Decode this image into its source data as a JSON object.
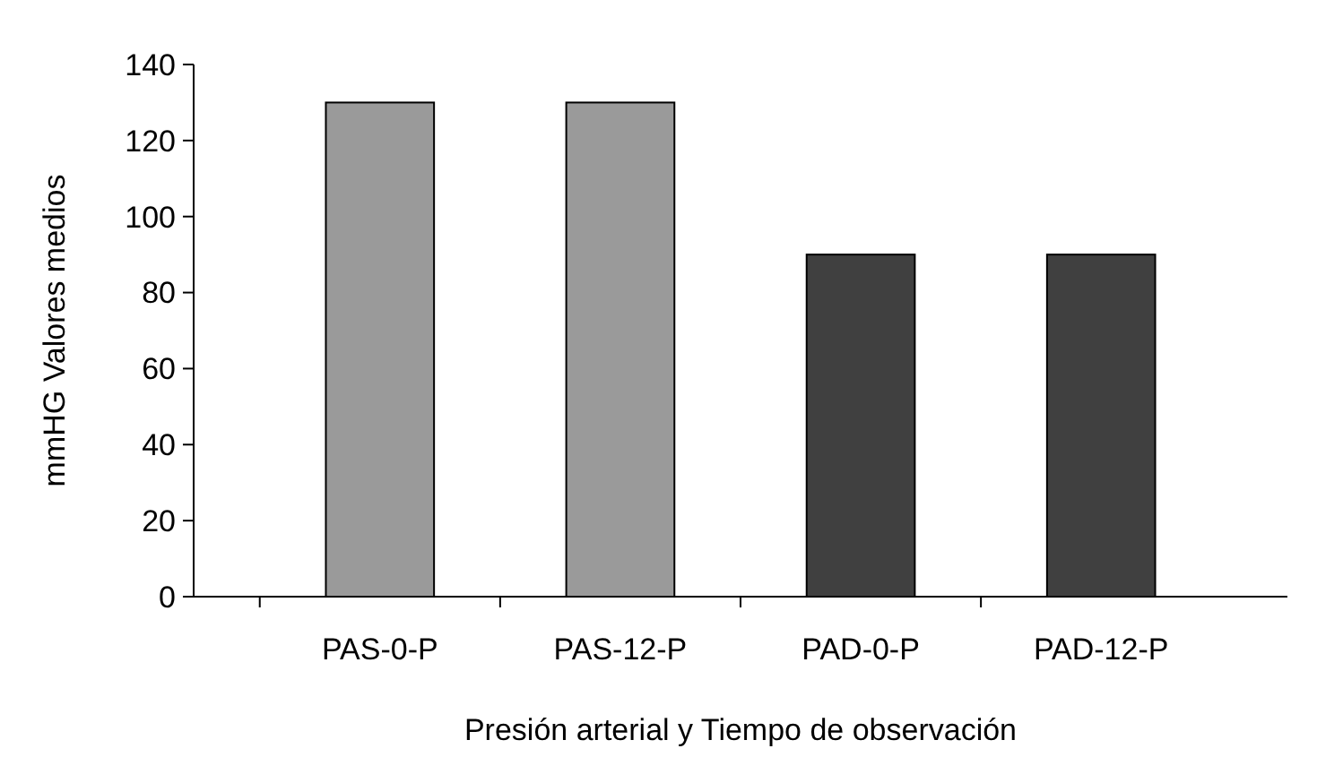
{
  "chart_data": {
    "type": "bar",
    "xlabel": "Presión arterial y Tiempo de observación",
    "ylabel": "mmHG Valores medios",
    "categories": [
      "PAS-0-P",
      "PAS-12-P",
      "PAD-0-P",
      "PAD-12-P"
    ],
    "values": [
      130,
      130,
      90,
      90
    ],
    "colors": [
      "#9a9a9a",
      "#9a9a9a",
      "#404040",
      "#404040"
    ],
    "ylim": [
      0,
      140
    ],
    "yticks": [
      0,
      20,
      40,
      60,
      80,
      100,
      120,
      140
    ],
    "grid": false
  }
}
